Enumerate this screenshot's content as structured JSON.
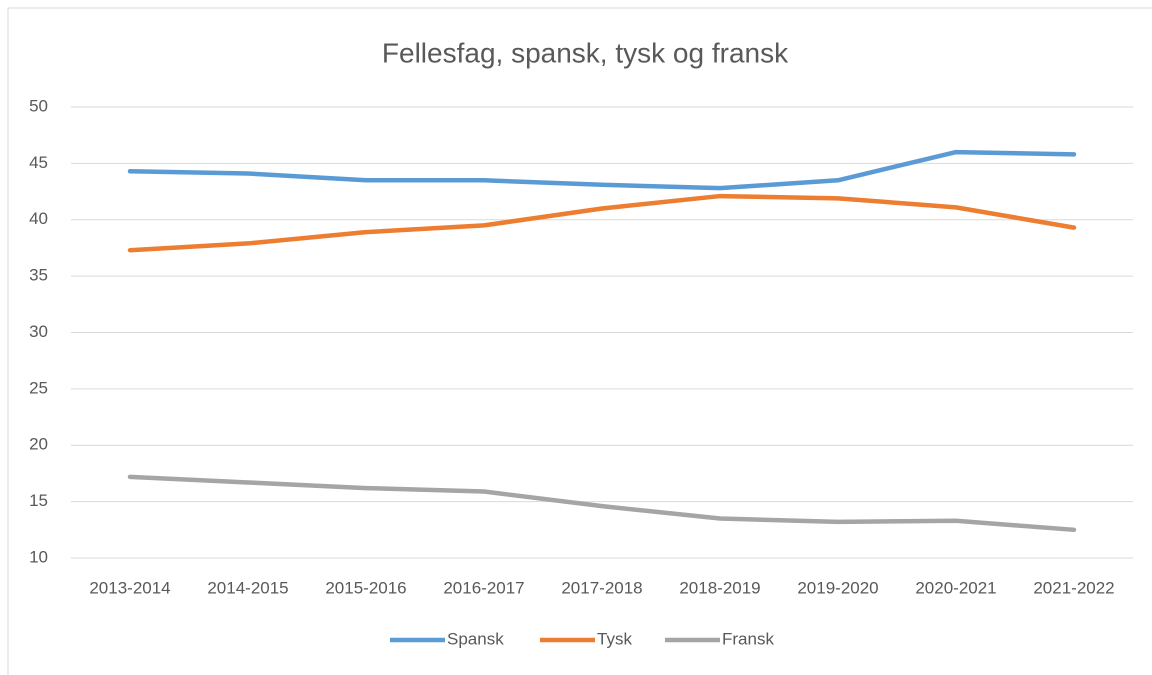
{
  "chart_data": {
    "type": "line",
    "title": "Fellesfag, spansk, tysk og fransk",
    "categories": [
      "2013-2014",
      "2014-2015",
      "2015-2016",
      "2016-2017",
      "2017-2018",
      "2018-2019",
      "2019-2020",
      "2020-2021",
      "2021-2022"
    ],
    "series": [
      {
        "name": "Spansk",
        "color": "#5b9bd5",
        "values": [
          44.3,
          44.1,
          43.5,
          43.5,
          43.1,
          42.8,
          43.5,
          46.0,
          45.8
        ]
      },
      {
        "name": "Tysk",
        "color": "#ed7d31",
        "values": [
          37.3,
          37.9,
          38.9,
          39.5,
          41.0,
          42.1,
          41.9,
          41.1,
          39.3
        ]
      },
      {
        "name": "Fransk",
        "color": "#a5a5a5",
        "values": [
          17.2,
          16.7,
          16.2,
          15.9,
          14.6,
          13.5,
          13.2,
          13.3,
          12.5
        ]
      }
    ],
    "ylim": [
      10,
      50
    ],
    "yticks": [
      10,
      15,
      20,
      25,
      30,
      35,
      40,
      45,
      50
    ],
    "grid": true,
    "legend": "bottom"
  }
}
